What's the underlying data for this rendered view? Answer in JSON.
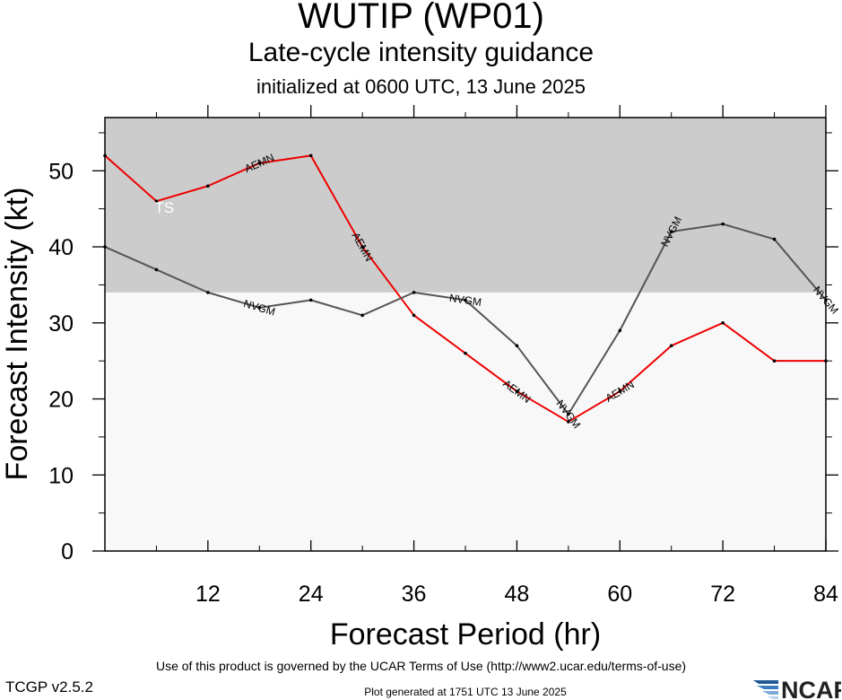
{
  "header": {
    "storm": "WUTIP (WP01)",
    "product": "Late-cycle intensity guidance",
    "init": "initialized at 0600 UTC, 13 June 2025"
  },
  "footer": {
    "terms": "Use of this product is governed by the UCAR Terms of Use (http://www2.ucar.edu/terms-of-use)",
    "version": "TCGP v2.5.2",
    "generated": "Plot generated at 1751 UTC   13 June 2025",
    "logo": "NCAR"
  },
  "chart_data": {
    "type": "line",
    "title": "WUTIP (WP01)",
    "xlabel": "Forecast Period (hr)",
    "ylabel": "Forecast Intensity (kt)",
    "xlim": [
      0,
      84
    ],
    "ylim": [
      0,
      57
    ],
    "xticks": [
      12,
      24,
      36,
      48,
      60,
      72,
      84
    ],
    "yticks": [
      0,
      10,
      20,
      30,
      40,
      50
    ],
    "grid": false,
    "bands": [
      {
        "from": 34,
        "to": 57,
        "label": "TS",
        "color": "#cccccc"
      },
      {
        "from": 0,
        "to": 34,
        "label": "",
        "color": "#f8f8f8"
      }
    ],
    "series": [
      {
        "name": "NVGM",
        "color": "#555555",
        "x": [
          0,
          6,
          12,
          18,
          24,
          30,
          36,
          42,
          48,
          54,
          60,
          66,
          72,
          78,
          84
        ],
        "y": [
          40,
          37,
          34,
          32,
          33,
          31,
          34,
          33,
          27,
          18,
          29,
          42,
          43,
          41,
          33
        ],
        "label_x": [
          18,
          42,
          54,
          66,
          84
        ]
      },
      {
        "name": "AEMN",
        "color": "#ee0000",
        "x": [
          0,
          6,
          12,
          18,
          24,
          30,
          36,
          42,
          48,
          54,
          60,
          66,
          72,
          78,
          84
        ],
        "y": [
          52,
          46,
          48,
          51,
          52,
          40,
          31,
          26,
          21,
          17,
          21,
          27,
          30,
          25,
          25
        ],
        "label_x": [
          18,
          30,
          48,
          60
        ]
      }
    ]
  }
}
